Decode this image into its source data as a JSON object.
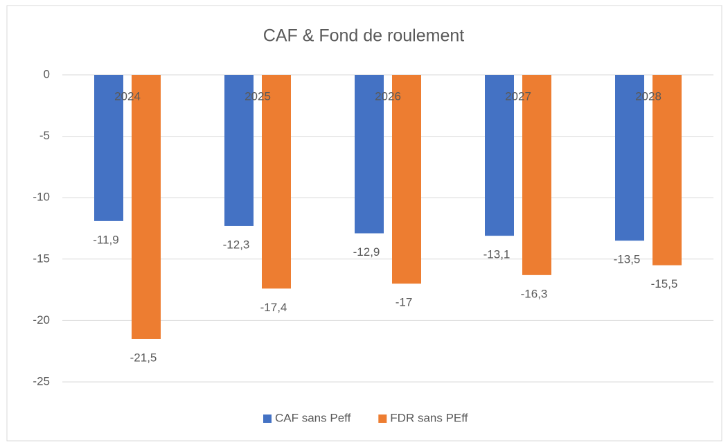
{
  "chart_data": {
    "type": "bar",
    "title": "CAF & Fond de roulement",
    "categories": [
      "2024",
      "2025",
      "2026",
      "2027",
      "2028"
    ],
    "series": [
      {
        "name": "CAF sans Peff",
        "color": "#4472c4",
        "values": [
          -11.9,
          -12.3,
          -12.9,
          -13.1,
          -13.5
        ],
        "value_labels": [
          "-11,9",
          "-12,3",
          "-12,9",
          "-13,1",
          "-13,5"
        ]
      },
      {
        "name": "FDR sans PEff",
        "color": "#ed7d31",
        "values": [
          -21.5,
          -17.4,
          -17,
          -16.3,
          -15.5
        ],
        "value_labels": [
          "-21,5",
          "-17,4",
          "-17",
          "-16,3",
          "-15,5"
        ]
      }
    ],
    "ylim": [
      -25,
      0
    ],
    "yticks": [
      0,
      -5,
      -10,
      -15,
      -20,
      -25
    ],
    "grid": true,
    "legend": "bottom"
  }
}
